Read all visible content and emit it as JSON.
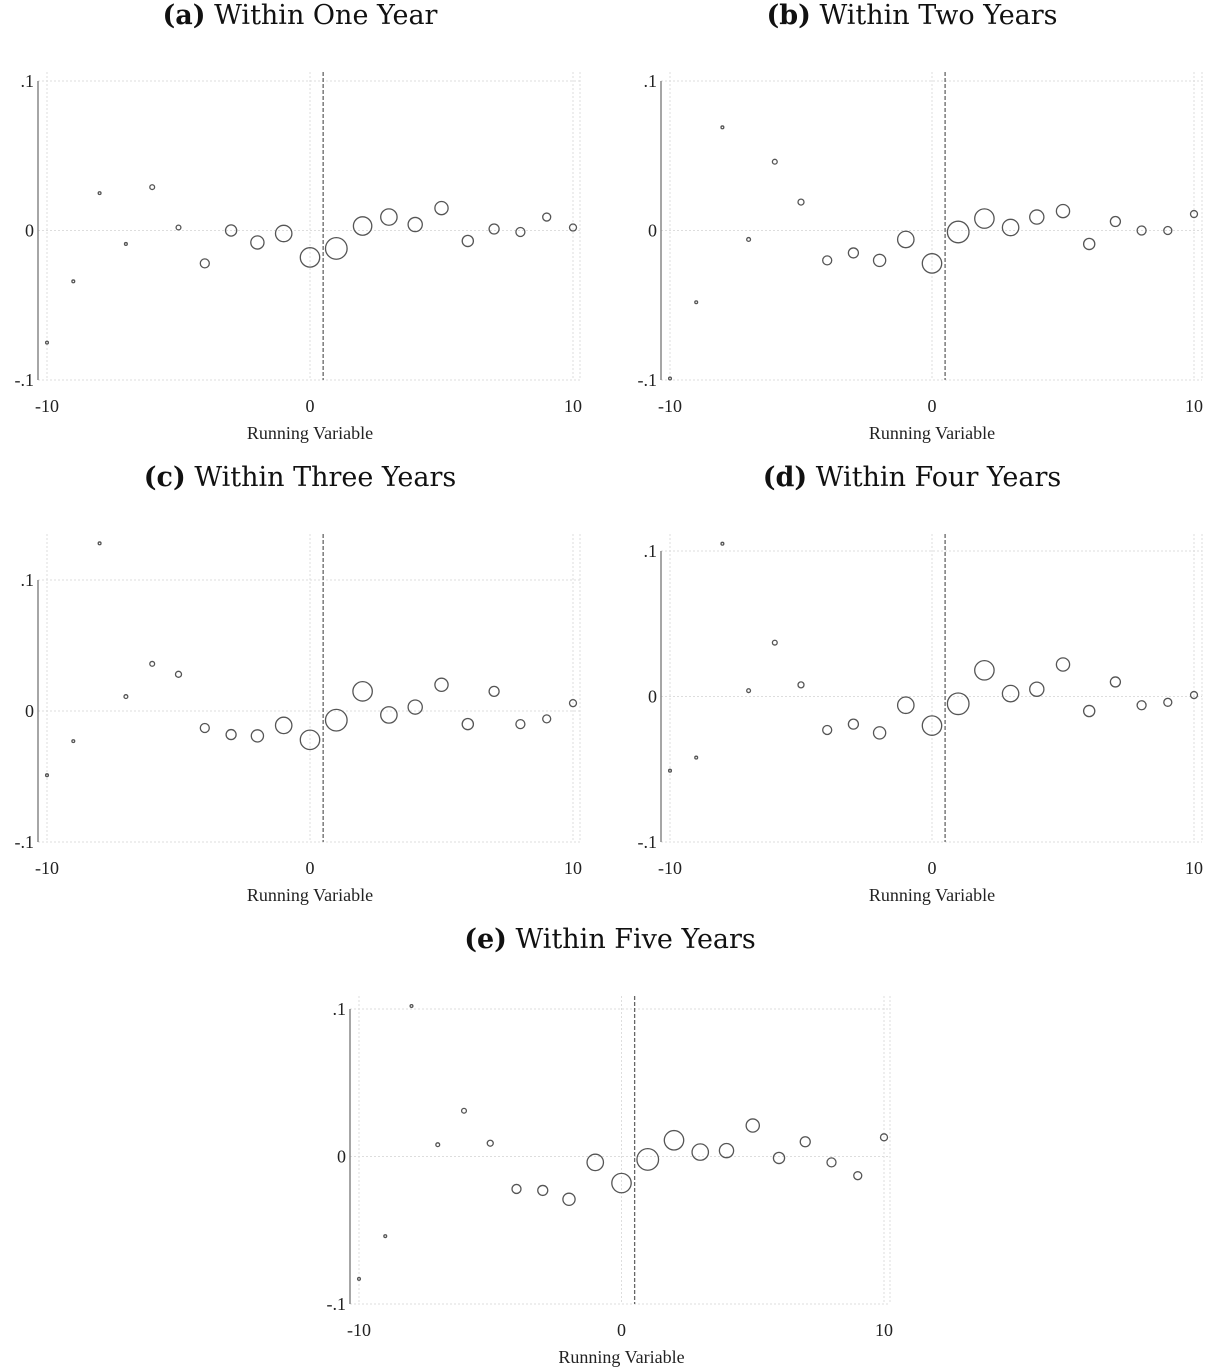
{
  "chart_data": [
    {
      "type": "scatter",
      "label": "(a)",
      "title": "Within One Year",
      "xlabel": "Running Variable",
      "ylabel": "",
      "xlim": [
        -10,
        10
      ],
      "ylim": [
        -0.1,
        0.1
      ],
      "xticks": [
        "-10",
        "0",
        "10"
      ],
      "yticks": [
        ".1",
        "0",
        "-.1"
      ],
      "cutoff": 0.5,
      "grid": true,
      "points": [
        {
          "x": -10,
          "y": -0.075,
          "size": 1
        },
        {
          "x": -9,
          "y": -0.034,
          "size": 1
        },
        {
          "x": -8,
          "y": 0.025,
          "size": 1
        },
        {
          "x": -7,
          "y": -0.009,
          "size": 1
        },
        {
          "x": -6,
          "y": 0.029,
          "size": 1.2
        },
        {
          "x": -5,
          "y": 0.002,
          "size": 1.2
        },
        {
          "x": -4,
          "y": -0.022,
          "size": 1.6
        },
        {
          "x": -3,
          "y": 0.0,
          "size": 1.8
        },
        {
          "x": -2,
          "y": -0.008,
          "size": 2
        },
        {
          "x": -1,
          "y": -0.002,
          "size": 2.3
        },
        {
          "x": 0,
          "y": -0.018,
          "size": 2.6
        },
        {
          "x": 1,
          "y": -0.012,
          "size": 2.8
        },
        {
          "x": 2,
          "y": 0.003,
          "size": 2.5
        },
        {
          "x": 3,
          "y": 0.009,
          "size": 2.3
        },
        {
          "x": 4,
          "y": 0.004,
          "size": 2.1
        },
        {
          "x": 5,
          "y": 0.015,
          "size": 2
        },
        {
          "x": 6,
          "y": -0.007,
          "size": 1.8
        },
        {
          "x": 7,
          "y": 0.001,
          "size": 1.7
        },
        {
          "x": 8,
          "y": -0.001,
          "size": 1.6
        },
        {
          "x": 9,
          "y": 0.009,
          "size": 1.5
        },
        {
          "x": 10,
          "y": 0.002,
          "size": 1.4
        }
      ]
    },
    {
      "type": "scatter",
      "label": "(b)",
      "title": "Within Two Years",
      "xlabel": "Running Variable",
      "ylabel": "",
      "xlim": [
        -10,
        10
      ],
      "ylim": [
        -0.1,
        0.1
      ],
      "xticks": [
        "-10",
        "0",
        "10"
      ],
      "yticks": [
        ".1",
        "0",
        "-.1"
      ],
      "cutoff": 0.5,
      "grid": true,
      "points": [
        {
          "x": -10,
          "y": -0.099,
          "size": 1
        },
        {
          "x": -9,
          "y": -0.048,
          "size": 1
        },
        {
          "x": -8,
          "y": 0.069,
          "size": 1
        },
        {
          "x": -7,
          "y": -0.006,
          "size": 1.1
        },
        {
          "x": -6,
          "y": 0.046,
          "size": 1.2
        },
        {
          "x": -5,
          "y": 0.019,
          "size": 1.3
        },
        {
          "x": -4,
          "y": -0.02,
          "size": 1.6
        },
        {
          "x": -3,
          "y": -0.015,
          "size": 1.7
        },
        {
          "x": -2,
          "y": -0.02,
          "size": 1.9
        },
        {
          "x": -1,
          "y": -0.006,
          "size": 2.3
        },
        {
          "x": 0,
          "y": -0.022,
          "size": 2.6
        },
        {
          "x": 1,
          "y": -0.001,
          "size": 2.8
        },
        {
          "x": 2,
          "y": 0.008,
          "size": 2.6
        },
        {
          "x": 3,
          "y": 0.002,
          "size": 2.3
        },
        {
          "x": 4,
          "y": 0.009,
          "size": 2.1
        },
        {
          "x": 5,
          "y": 0.013,
          "size": 2
        },
        {
          "x": 6,
          "y": -0.009,
          "size": 1.8
        },
        {
          "x": 7,
          "y": 0.006,
          "size": 1.7
        },
        {
          "x": 8,
          "y": 0.0,
          "size": 1.6
        },
        {
          "x": 9,
          "y": 0.0,
          "size": 1.5
        },
        {
          "x": 10,
          "y": 0.011,
          "size": 1.4
        }
      ]
    },
    {
      "type": "scatter",
      "label": "(c)",
      "title": "Within Three Years",
      "xlabel": "Running Variable",
      "ylabel": "",
      "xlim": [
        -10,
        10
      ],
      "ylim": [
        -0.1,
        0.1
      ],
      "xticks": [
        "-10",
        "0",
        "10"
      ],
      "yticks": [
        ".1",
        "0",
        "-.1"
      ],
      "cutoff": 0.5,
      "grid": true,
      "points": [
        {
          "x": -10,
          "y": -0.049,
          "size": 1
        },
        {
          "x": -9,
          "y": -0.023,
          "size": 1
        },
        {
          "x": -8,
          "y": 0.128,
          "size": 1
        },
        {
          "x": -7,
          "y": 0.011,
          "size": 1.1
        },
        {
          "x": -6,
          "y": 0.036,
          "size": 1.2
        },
        {
          "x": -5,
          "y": 0.028,
          "size": 1.3
        },
        {
          "x": -4,
          "y": -0.013,
          "size": 1.6
        },
        {
          "x": -3,
          "y": -0.018,
          "size": 1.7
        },
        {
          "x": -2,
          "y": -0.019,
          "size": 1.9
        },
        {
          "x": -1,
          "y": -0.011,
          "size": 2.3
        },
        {
          "x": 0,
          "y": -0.022,
          "size": 2.6
        },
        {
          "x": 1,
          "y": -0.007,
          "size": 2.8
        },
        {
          "x": 2,
          "y": 0.015,
          "size": 2.6
        },
        {
          "x": 3,
          "y": -0.003,
          "size": 2.3
        },
        {
          "x": 4,
          "y": 0.003,
          "size": 2.1
        },
        {
          "x": 5,
          "y": 0.02,
          "size": 2
        },
        {
          "x": 6,
          "y": -0.01,
          "size": 1.8
        },
        {
          "x": 7,
          "y": 0.015,
          "size": 1.7
        },
        {
          "x": 8,
          "y": -0.01,
          "size": 1.6
        },
        {
          "x": 9,
          "y": -0.006,
          "size": 1.5
        },
        {
          "x": 10,
          "y": 0.006,
          "size": 1.4
        }
      ]
    },
    {
      "type": "scatter",
      "label": "(d)",
      "title": "Within Four Years",
      "xlabel": "Running Variable",
      "ylabel": "",
      "xlim": [
        -10,
        10
      ],
      "ylim": [
        -0.1,
        0.1
      ],
      "xticks": [
        "-10",
        "0",
        "10"
      ],
      "yticks": [
        ".1",
        "0",
        "-.1"
      ],
      "cutoff": 0.5,
      "grid": true,
      "points": [
        {
          "x": -10,
          "y": -0.051,
          "size": 1
        },
        {
          "x": -9,
          "y": -0.042,
          "size": 1
        },
        {
          "x": -8,
          "y": 0.105,
          "size": 1
        },
        {
          "x": -7,
          "y": 0.004,
          "size": 1.1
        },
        {
          "x": -6,
          "y": 0.037,
          "size": 1.2
        },
        {
          "x": -5,
          "y": 0.008,
          "size": 1.3
        },
        {
          "x": -4,
          "y": -0.023,
          "size": 1.6
        },
        {
          "x": -3,
          "y": -0.019,
          "size": 1.7
        },
        {
          "x": -2,
          "y": -0.025,
          "size": 1.9
        },
        {
          "x": -1,
          "y": -0.006,
          "size": 2.3
        },
        {
          "x": 0,
          "y": -0.02,
          "size": 2.6
        },
        {
          "x": 1,
          "y": -0.005,
          "size": 2.8
        },
        {
          "x": 2,
          "y": 0.018,
          "size": 2.6
        },
        {
          "x": 3,
          "y": 0.002,
          "size": 2.3
        },
        {
          "x": 4,
          "y": 0.005,
          "size": 2.1
        },
        {
          "x": 5,
          "y": 0.022,
          "size": 2
        },
        {
          "x": 6,
          "y": -0.01,
          "size": 1.8
        },
        {
          "x": 7,
          "y": 0.01,
          "size": 1.7
        },
        {
          "x": 8,
          "y": -0.006,
          "size": 1.6
        },
        {
          "x": 9,
          "y": -0.004,
          "size": 1.5
        },
        {
          "x": 10,
          "y": 0.001,
          "size": 1.4
        }
      ]
    },
    {
      "type": "scatter",
      "label": "(e)",
      "title": "Within Five Years",
      "xlabel": "Running Variable",
      "ylabel": "",
      "xlim": [
        -10,
        10
      ],
      "ylim": [
        -0.1,
        0.1
      ],
      "xticks": [
        "-10",
        "0",
        "10"
      ],
      "yticks": [
        ".1",
        "0",
        "-.1"
      ],
      "cutoff": 0.5,
      "grid": true,
      "points": [
        {
          "x": -10,
          "y": -0.083,
          "size": 1
        },
        {
          "x": -9,
          "y": -0.054,
          "size": 1
        },
        {
          "x": -8,
          "y": 0.102,
          "size": 1
        },
        {
          "x": -7,
          "y": 0.008,
          "size": 1.1
        },
        {
          "x": -6,
          "y": 0.031,
          "size": 1.2
        },
        {
          "x": -5,
          "y": 0.009,
          "size": 1.3
        },
        {
          "x": -4,
          "y": -0.022,
          "size": 1.6
        },
        {
          "x": -3,
          "y": -0.023,
          "size": 1.7
        },
        {
          "x": -2,
          "y": -0.029,
          "size": 1.9
        },
        {
          "x": -1,
          "y": -0.004,
          "size": 2.3
        },
        {
          "x": 0,
          "y": -0.018,
          "size": 2.6
        },
        {
          "x": 1,
          "y": -0.002,
          "size": 2.8
        },
        {
          "x": 2,
          "y": 0.011,
          "size": 2.6
        },
        {
          "x": 3,
          "y": 0.003,
          "size": 2.3
        },
        {
          "x": 4,
          "y": 0.004,
          "size": 2.1
        },
        {
          "x": 5,
          "y": 0.021,
          "size": 2
        },
        {
          "x": 6,
          "y": -0.001,
          "size": 1.8
        },
        {
          "x": 7,
          "y": 0.01,
          "size": 1.7
        },
        {
          "x": 8,
          "y": -0.004,
          "size": 1.6
        },
        {
          "x": 9,
          "y": -0.013,
          "size": 1.5
        },
        {
          "x": 10,
          "y": 0.013,
          "size": 1.4
        }
      ]
    }
  ],
  "colors": {
    "marker": "#555555",
    "grid": "#dddddd",
    "cutoff": "#666666",
    "axis": "#888888"
  }
}
